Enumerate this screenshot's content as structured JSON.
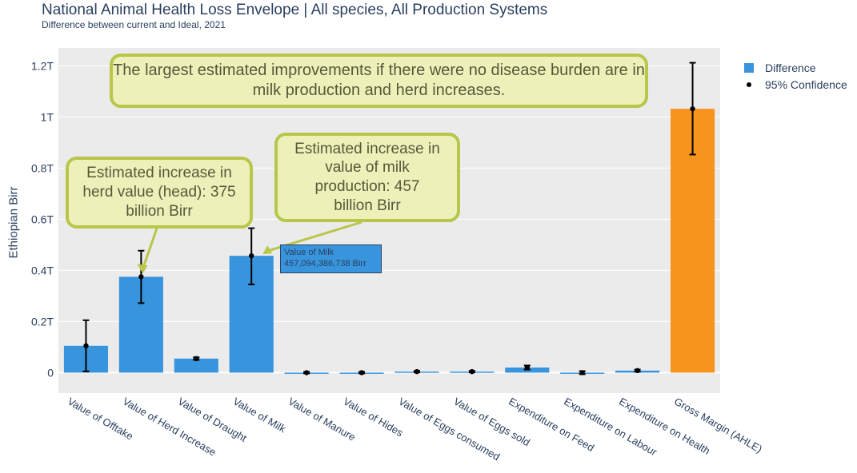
{
  "header": {
    "title": "National Animal Health Loss Envelope | All species, All Production Systems",
    "subtitle": "Difference between current and Ideal, 2021"
  },
  "legend": {
    "difference": "Difference",
    "confidence": "95% Confidence"
  },
  "annotations": {
    "main": "The largest estimated improvements if there were no disease burden are in milk production and herd increases.",
    "herd": "Estimated increase in herd value (head): 375 billion Birr",
    "milk": "Estimated increase in value of milk production: 457 billion Birr"
  },
  "tooltip": {
    "line1": "Value of Milk",
    "line2": "457,094,386,738 Birr"
  },
  "colors": {
    "bar": "#3894dc",
    "total": "#f7941d",
    "plot_bg": "#ebebeb",
    "callout_fill": "#eef0b9",
    "callout_border": "#b8c64a"
  },
  "chart_data": {
    "type": "bar",
    "title": "National Animal Health Loss Envelope | All species, All Production Systems",
    "subtitle": "Difference between current and Ideal, 2021",
    "ylabel": "Ethiopian Birr",
    "xlabel": "",
    "categories": [
      "Value of Offtake",
      "Value of Herd Increase",
      "Value of Draught",
      "Value of Milk",
      "Value of Manure",
      "Value of Hides",
      "Value of Eggs consumed",
      "Value of Eggs sold",
      "Expenditure on Feed",
      "Expenditure on Labour",
      "Expenditure on Health",
      "Gross Margin (AHLE)"
    ],
    "ylim": [
      -0.08,
      1.27
    ],
    "yticks": [
      0,
      0.2,
      0.4,
      0.6,
      0.8,
      1,
      1.2
    ],
    "ytick_labels": [
      "0",
      "0.2T",
      "0.4T",
      "0.6T",
      "0.8T",
      "1T",
      "1.2T"
    ],
    "series": [
      {
        "name": "Difference",
        "values": [
          0.105,
          0.375,
          0.055,
          0.457,
          0.0,
          0.0,
          0.004,
          0.004,
          0.02,
          0.0,
          0.008,
          1.032
        ],
        "colors": [
          "#3894dc",
          "#3894dc",
          "#3894dc",
          "#3894dc",
          "#3894dc",
          "#3894dc",
          "#3894dc",
          "#3894dc",
          "#3894dc",
          "#3894dc",
          "#3894dc",
          "#f7941d"
        ]
      },
      {
        "name": "95% Confidence",
        "lower": [
          0.005,
          0.272,
          0.05,
          0.345,
          -0.003,
          -0.003,
          0.001,
          0.001,
          0.012,
          -0.006,
          0.004,
          0.853
        ],
        "upper": [
          0.205,
          0.477,
          0.06,
          0.565,
          0.003,
          0.003,
          0.007,
          0.007,
          0.028,
          0.006,
          0.012,
          1.212
        ]
      }
    ],
    "grid": true,
    "legend_position": "top-right"
  }
}
